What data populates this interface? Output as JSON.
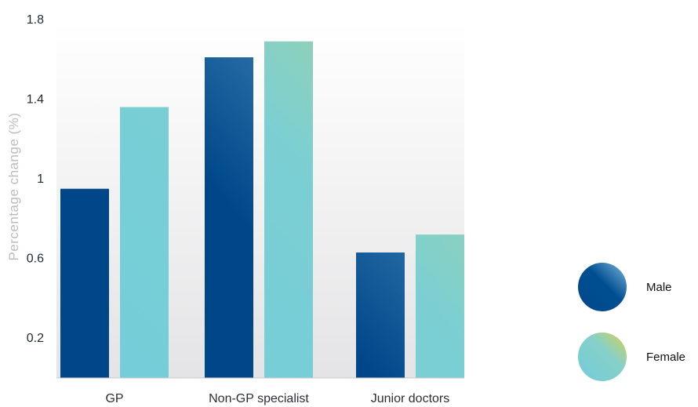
{
  "chart_data": {
    "type": "bar",
    "categories": [
      "GP",
      "Non-GP specialist",
      "Junior doctors"
    ],
    "series": [
      {
        "name": "Male",
        "values": [
          0.95,
          1.61,
          0.63
        ]
      },
      {
        "name": "Female",
        "values": [
          1.36,
          1.69,
          0.72
        ]
      }
    ],
    "title": "",
    "xlabel": "",
    "ylabel": "Percentage change (%)",
    "yticks": [
      0.2,
      0.6,
      1,
      1.4,
      1.8
    ],
    "ylim": [
      0,
      1.8
    ],
    "grid": false,
    "legend_position": "right",
    "colors": {
      "male_dark": "#00478a",
      "male_light": "#4f93c2",
      "female_teal": "#72ccd9",
      "female_green": "#a3d29e",
      "legend_female_yellow": "#d6d24f"
    }
  }
}
